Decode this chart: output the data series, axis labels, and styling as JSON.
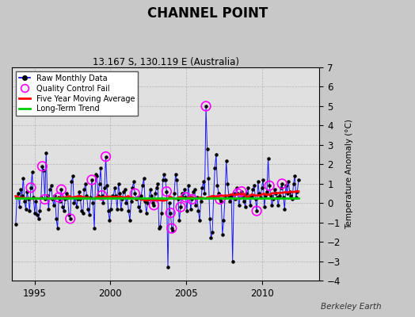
{
  "title": "CHANNEL POINT",
  "subtitle": "13.167 S, 130.119 E (Australia)",
  "ylabel": "Temperature Anomaly (°C)",
  "watermark": "Berkeley Earth",
  "ylim": [
    -4,
    7
  ],
  "xlim": [
    1993.5,
    2013.8
  ],
  "xticks": [
    1995,
    2000,
    2005,
    2010
  ],
  "yticks": [
    -4,
    -3,
    -2,
    -1,
    0,
    1,
    2,
    3,
    4,
    5,
    6,
    7
  ],
  "bg_color": "#c8c8c8",
  "plot_bg": "#e8e8e8",
  "raw_color": "#0000ff",
  "marker_color": "#000000",
  "ma_color": "#ff0000",
  "trend_color": "#00cc00",
  "qc_color": "#ff00ff",
  "raw_data": [
    -1.1,
    0.3,
    0.5,
    -0.2,
    0.7,
    0.4,
    1.3,
    0.1,
    -0.3,
    0.6,
    0.2,
    -0.4,
    0.8,
    1.6,
    0.3,
    -0.5,
    0.1,
    -0.6,
    -0.8,
    -0.4,
    0.3,
    1.9,
    1.7,
    0.2,
    2.6,
    0.4,
    -0.3,
    0.7,
    0.9,
    0.2,
    -0.1,
    0.4,
    -0.8,
    -1.3,
    0.3,
    0.1,
    0.7,
    -0.2,
    -0.4,
    0.2,
    0.5,
    0.3,
    -0.6,
    -0.8,
    1.1,
    1.4,
    0.0,
    0.3,
    -0.2,
    0.2,
    0.6,
    0.2,
    -0.4,
    -0.5,
    0.7,
    1.0,
    0.4,
    -0.3,
    -0.6,
    0.3,
    1.2,
    0.0,
    -1.3,
    1.5,
    1.4,
    0.4,
    1.0,
    1.8,
    0.4,
    0.0,
    0.8,
    2.4,
    0.9,
    -0.4,
    -0.9,
    -0.3,
    0.4,
    0.3,
    0.8,
    0.4,
    -0.3,
    1.0,
    0.5,
    -0.3,
    0.2,
    0.6,
    0.7,
    0.0,
    0.3,
    -0.4,
    -0.9,
    0.1,
    0.8,
    1.1,
    0.5,
    0.2,
    0.3,
    -0.2,
    -0.4,
    0.4,
    0.9,
    1.3,
    0.1,
    -0.5,
    0.0,
    0.2,
    0.7,
    0.4,
    0.0,
    -0.1,
    0.5,
    0.8,
    1.0,
    -1.3,
    -1.2,
    -0.5,
    1.2,
    1.5,
    1.2,
    0.6,
    -3.3,
    0.0,
    -0.5,
    -1.3,
    -1.4,
    0.5,
    1.5,
    1.2,
    0.2,
    -0.9,
    -0.2,
    0.5,
    0.3,
    0.7,
    0.3,
    -0.4,
    0.9,
    0.4,
    -0.3,
    0.2,
    0.6,
    0.7,
    -0.1,
    0.3,
    -0.4,
    -0.9,
    0.1,
    0.8,
    1.1,
    0.5,
    5.0,
    2.8,
    1.3,
    -0.8,
    -1.8,
    -1.5,
    0.3,
    1.8,
    2.5,
    0.9,
    0.5,
    0.2,
    0.1,
    -1.6,
    -0.9,
    0.3,
    2.2,
    1.0,
    0.4,
    0.1,
    0.4,
    -3.0,
    0.5,
    0.2,
    0.8,
    0.5,
    -0.1,
    0.3,
    0.6,
    0.4,
    0.1,
    -0.2,
    0.5,
    0.8,
    0.3,
    -0.1,
    0.4,
    0.7,
    0.9,
    0.2,
    -0.4,
    1.1,
    0.5,
    0.3,
    0.8,
    1.2,
    -0.2,
    0.4,
    0.6,
    2.3,
    0.9,
    0.4,
    -0.1,
    0.2,
    0.7,
    0.5,
    0.3,
    -0.1,
    0.4,
    0.8,
    1.0,
    0.3,
    -0.3,
    0.9,
    0.5,
    1.1,
    0.6,
    0.4,
    0.2,
    1.0,
    1.4,
    0.3,
    0.6,
    1.2
  ],
  "qc_fail_indices": [
    12,
    21,
    23,
    34,
    36,
    43,
    60,
    68,
    71,
    94,
    109,
    119,
    122,
    123,
    130,
    134,
    139,
    150,
    161,
    175,
    178,
    190,
    200,
    210
  ],
  "trend_val": 0.25
}
